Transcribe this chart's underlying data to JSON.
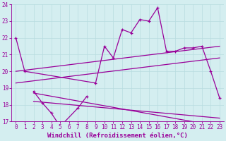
{
  "xlabel": "Windchill (Refroidissement éolien,°C)",
  "background_color": "#d4eef0",
  "line_color": "#990099",
  "ylim": [
    17,
    24
  ],
  "yticks": [
    17,
    18,
    19,
    20,
    21,
    22,
    23,
    24
  ],
  "xticks": [
    0,
    1,
    2,
    3,
    4,
    5,
    6,
    7,
    8,
    9,
    10,
    11,
    12,
    13,
    14,
    15,
    16,
    17,
    18,
    19,
    20,
    21,
    22,
    23
  ],
  "grid_color": "#b8dce0",
  "tick_fontsize": 5.5,
  "label_fontsize": 6.5,
  "series_upper": {
    "x": [
      0,
      1,
      9,
      10,
      11,
      12,
      13,
      14,
      15,
      16,
      17,
      18,
      19,
      20,
      21,
      22,
      23
    ],
    "y": [
      22.0,
      20.0,
      19.3,
      21.5,
      20.8,
      22.5,
      22.3,
      23.1,
      23.0,
      23.8,
      21.2,
      21.2,
      21.4,
      21.4,
      21.5,
      20.0,
      18.4
    ]
  },
  "series_lower": {
    "x": [
      2,
      3,
      4,
      5,
      7,
      8
    ],
    "y": [
      18.8,
      18.1,
      17.5,
      16.7,
      17.8,
      18.5
    ]
  },
  "trend1": {
    "x": [
      0,
      23
    ],
    "y": [
      20.0,
      21.5
    ]
  },
  "trend2": {
    "x": [
      0,
      23
    ],
    "y": [
      19.3,
      20.8
    ]
  },
  "trend3": {
    "x": [
      2,
      23
    ],
    "y": [
      18.7,
      16.7
    ]
  },
  "trend4": {
    "x": [
      2,
      23
    ],
    "y": [
      18.2,
      17.2
    ]
  }
}
